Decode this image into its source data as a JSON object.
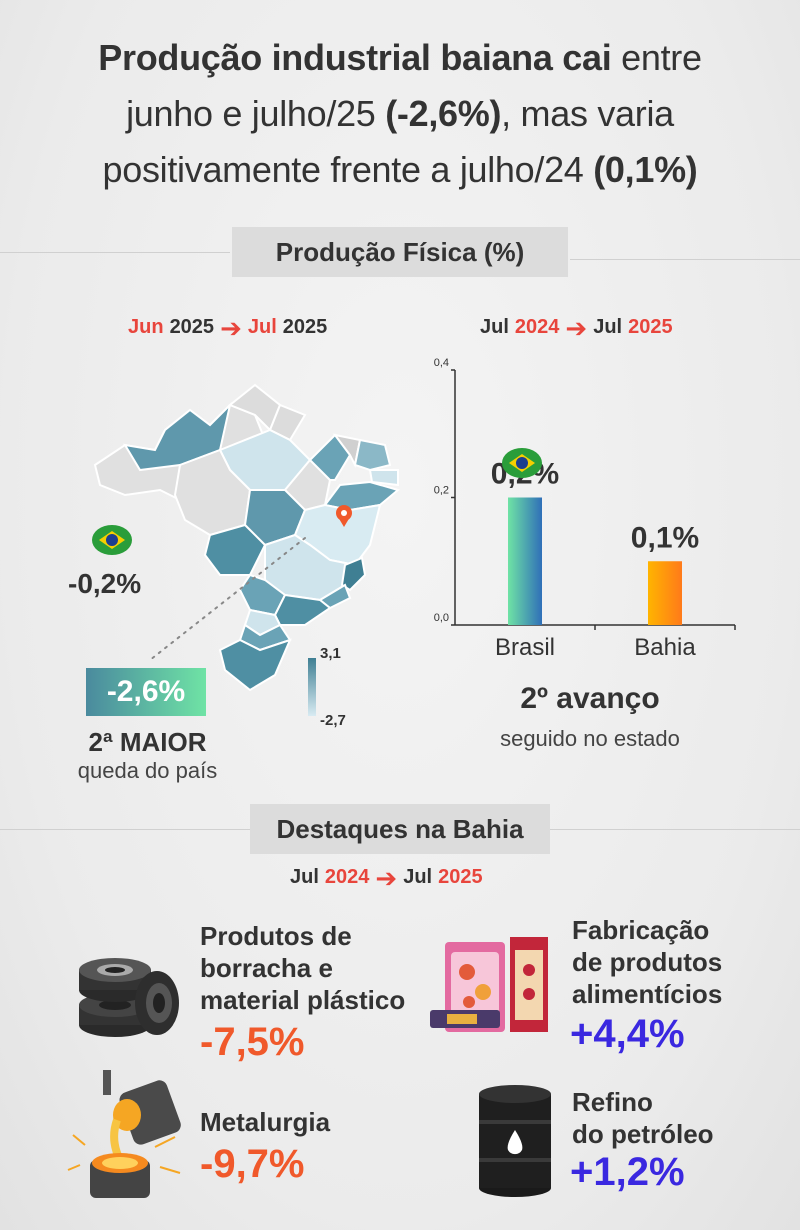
{
  "title": {
    "b1": "Produção industrial baiana cai",
    "t1": " entre",
    "t2": "junho e julho/25 ",
    "b2": "(-2,6%)",
    "t3": ", mas varia",
    "t4": "positivamente frente a julho/24 ",
    "b3": "(0,1%)"
  },
  "section1": {
    "label": "Produção Física (%)"
  },
  "left_period": {
    "from_month": "Jun",
    "from_year": "2025",
    "arrow": "➔",
    "to_month": "Jul",
    "to_year": "2025"
  },
  "right_period": {
    "from_month": "Jul",
    "from_year": "2024",
    "arrow": "➔",
    "to_month": "Jul",
    "to_year": "2025"
  },
  "map": {
    "brazil_value": "-0,2%",
    "bahia_value": "-2,6%",
    "rank_label": "2ª MAIOR",
    "rank_desc": "queda do país",
    "legend_max": "3,1",
    "legend_min": "-2,7"
  },
  "chart_data": {
    "type": "bar",
    "categories": [
      "Brasil",
      "Bahia"
    ],
    "values": [
      0.2,
      0.1
    ],
    "value_labels": [
      "0,2%",
      "0,1%"
    ],
    "yticks": [
      "0,0",
      "0,2",
      "0,4"
    ],
    "ylim": [
      0,
      0.4
    ],
    "annotation_title": "2º avanço",
    "annotation_sub": "seguido no estado"
  },
  "section2": {
    "label": "Destaques na Bahia"
  },
  "highlights_period": {
    "from_month": "Jul",
    "from_year": "2024",
    "arrow": "➔",
    "to_month": "Jul",
    "to_year": "2025"
  },
  "highlights": {
    "borracha": {
      "l1": "Produtos de",
      "l2": "borracha e",
      "l3": "material plástico",
      "value": "-7,5%",
      "icon": "tires-icon"
    },
    "alimenticios": {
      "l1": "Fabricação",
      "l2": "de produtos",
      "l3": "alimentícios",
      "value": "+4,4%",
      "icon": "food-package-icon"
    },
    "metalurgia": {
      "l1": "Metalurgia",
      "value": "-9,7%",
      "icon": "crucible-icon"
    },
    "refino": {
      "l1": "Refino",
      "l2": "do petróleo",
      "value": "+1,2%",
      "icon": "oil-barrel-icon"
    }
  },
  "colors": {
    "red": "#f0592b",
    "blue": "#3a28e0",
    "arrow_red": "#e8453c",
    "map_dark": "#4e8ea2",
    "map_light": "#d4e7ef"
  }
}
